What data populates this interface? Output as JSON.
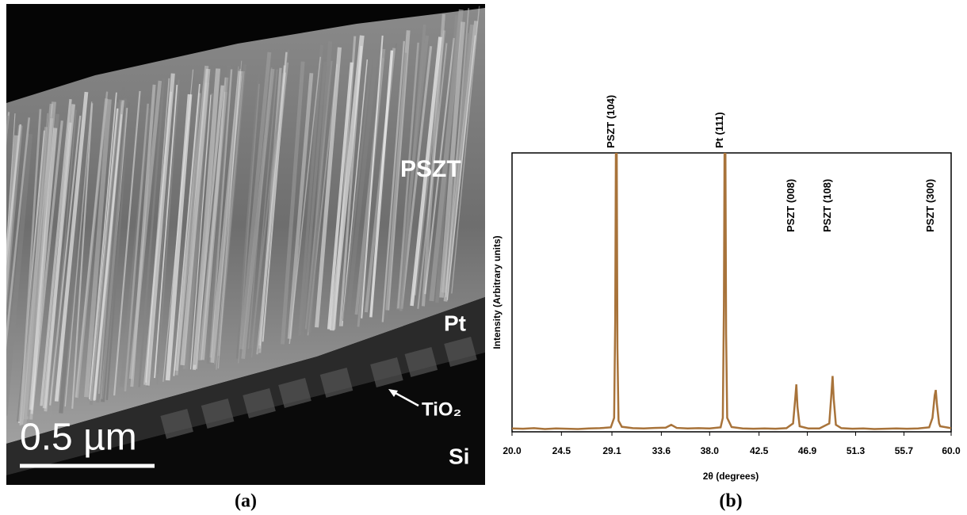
{
  "micrograph": {
    "labels": [
      "PSZT",
      "Pt",
      "TiO₂",
      "Si"
    ],
    "scale_bar": "0.5 µm"
  },
  "captions": [
    "(a)",
    "(b)"
  ],
  "chart_data": {
    "type": "line",
    "xlabel": "2θ (degrees)",
    "ylabel": "Intensity (Arbitrary units)",
    "color": "#a8733a",
    "xlim": [
      20,
      60
    ],
    "ylim": [
      0,
      100
    ],
    "xticks": [
      {
        "value": 20,
        "label": "20.0"
      },
      24.5,
      29.1,
      33.6,
      {
        "value": 38,
        "label": "38.0"
      },
      42.5,
      46.9,
      51.3,
      55.7,
      {
        "value": 60,
        "label": "60.0"
      }
    ],
    "x": [
      20,
      21,
      22,
      23,
      24,
      25,
      26,
      27,
      28,
      29,
      29.3,
      29.4,
      29.5,
      29.6,
      29.7,
      30,
      31,
      32,
      33,
      34,
      34.5,
      35,
      36,
      37,
      38,
      39,
      39.2,
      39.3,
      39.4,
      39.5,
      39.6,
      40,
      41,
      42,
      43,
      44,
      45,
      45.6,
      45.8,
      45.9,
      46.0,
      46.2,
      47,
      48,
      48.9,
      49.1,
      49.2,
      49.3,
      49.5,
      50,
      51,
      52,
      53,
      54,
      55,
      56,
      57,
      58,
      58.3,
      58.5,
      58.6,
      58.7,
      58.9,
      59,
      60
    ],
    "values": [
      1.2,
      1.1,
      1.3,
      1.0,
      1.2,
      1.1,
      1.0,
      1.2,
      1.3,
      1.6,
      5,
      40,
      140,
      30,
      4,
      1.8,
      1.3,
      1.2,
      1.4,
      1.5,
      2.5,
      1.4,
      1.2,
      1.3,
      1.2,
      1.6,
      5,
      45,
      140,
      35,
      5,
      1.7,
      1.2,
      1.1,
      1.2,
      1.1,
      1.3,
      3,
      12,
      17,
      9,
      2,
      1.2,
      1.2,
      3,
      14,
      20,
      12,
      2.5,
      1.3,
      1.1,
      1.2,
      1.0,
      1.1,
      1.2,
      1.1,
      1.2,
      1.6,
      5,
      13,
      15,
      10,
      3,
      2,
      1.3
    ],
    "annotations": [
      {
        "text": "PSZT (104)",
        "x": 29.5
      },
      {
        "text": "Pt (111)",
        "x": 39.4
      },
      {
        "text": "PSZT (008)",
        "x": 45.9
      },
      {
        "text": "PSZT (108)",
        "x": 49.2
      },
      {
        "text": "PSZT (300)",
        "x": 58.6
      }
    ]
  }
}
